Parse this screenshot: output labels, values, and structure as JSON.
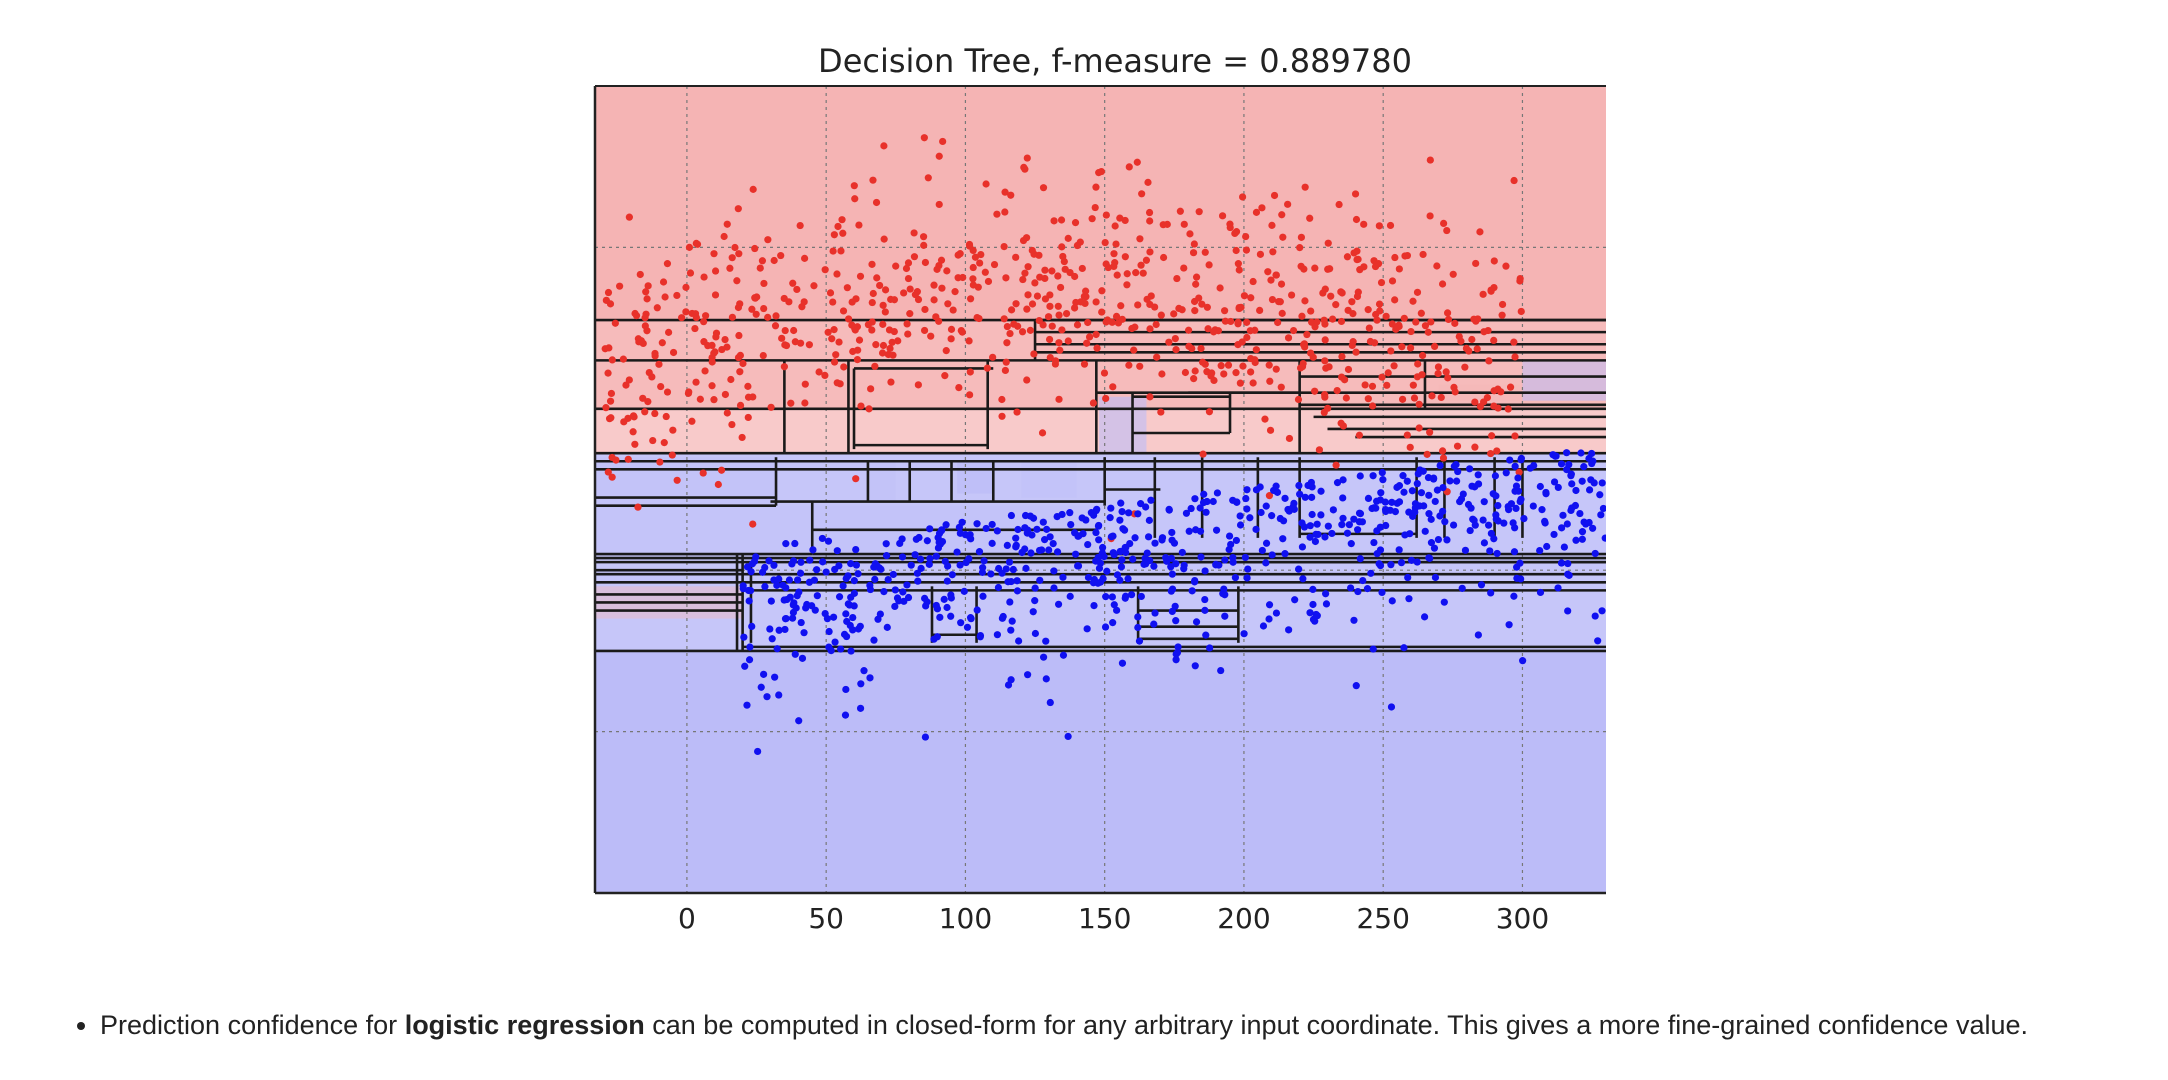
{
  "chart_data": {
    "type": "scatter",
    "title": "Decision Tree, f-measure = 0.889780",
    "xlabel": "",
    "ylabel": "",
    "xlim": [
      -33,
      330
    ],
    "ylim": [
      0,
      100
    ],
    "x_ticks": [
      0,
      50,
      100,
      150,
      200,
      250,
      300
    ],
    "x_tick_labels": [
      "0",
      "50",
      "100",
      "150",
      "200",
      "250",
      "300"
    ],
    "y_gridlines": [
      20,
      40,
      60,
      80
    ],
    "grid": true,
    "legend": "none",
    "classes": [
      {
        "name": "",
        "point_color": "#e8312a",
        "region_color": "#f5b4b4",
        "approx_points": 800
      },
      {
        "name": "",
        "point_color": "#1010f0",
        "region_color": "#bcbcf8",
        "approx_points": 750
      }
    ],
    "regions": [
      {
        "x0": -33,
        "x1": 330,
        "y0": 71,
        "y1": 100,
        "class": "red",
        "confidence": 1.0
      },
      {
        "x0": -33,
        "x1": 330,
        "y0": 60,
        "y1": 71,
        "class": "red",
        "confidence": 0.9
      },
      {
        "x0": -33,
        "x1": 330,
        "y0": 54.5,
        "y1": 60,
        "class": "red",
        "confidence": 0.7
      },
      {
        "x0": -33,
        "x1": 330,
        "y0": 30,
        "y1": 54.5,
        "class": "blue",
        "confidence": 0.85
      },
      {
        "x0": -33,
        "x1": 330,
        "y0": 0,
        "y1": 30,
        "class": "blue",
        "confidence": 1.0
      },
      {
        "x0": -33,
        "x1": 32,
        "y0": 48,
        "y1": 54,
        "class": "blue",
        "confidence": 0.25
      },
      {
        "x0": -33,
        "x1": 45,
        "y0": 42,
        "y1": 48,
        "class": "blue",
        "confidence": 0.15
      },
      {
        "x0": 45,
        "x1": 147,
        "y0": 42,
        "y1": 48,
        "class": "blue",
        "confidence": 0.3
      },
      {
        "x0": -33,
        "x1": 20,
        "y0": 34,
        "y1": 38,
        "class": "red",
        "confidence": 0.4
      },
      {
        "x0": 148,
        "x1": 165,
        "y0": 54.5,
        "y1": 61.5,
        "class": "blue",
        "confidence": 0.6
      },
      {
        "x0": 65,
        "x1": 75,
        "y0": 48.5,
        "y1": 53.5,
        "class": "blue",
        "confidence": 0.25
      },
      {
        "x0": 97,
        "x1": 110,
        "y0": 49.5,
        "y1": 53.5,
        "class": "blue",
        "confidence": 0.7
      },
      {
        "x0": 120,
        "x1": 140,
        "y0": 49,
        "y1": 53.5,
        "class": "blue",
        "confidence": 0.3
      },
      {
        "x0": 300,
        "x1": 330,
        "y0": 61,
        "y1": 66,
        "class": "blue",
        "confidence": 0.55
      },
      {
        "x0": 270,
        "x1": 300,
        "y0": 61,
        "y1": 63,
        "class": "red",
        "confidence": 0.25
      }
    ],
    "split_segments": [
      {
        "x0": -33,
        "x1": 330,
        "y0": 71,
        "y1": 71
      },
      {
        "x0": 125,
        "x1": 330,
        "y0": 71,
        "y1": 71
      },
      {
        "x0": 125,
        "x1": 125,
        "y0": 66,
        "y1": 71
      },
      {
        "x0": 125,
        "x1": 330,
        "y0": 69.5,
        "y1": 69.5
      },
      {
        "x0": 125,
        "x1": 330,
        "y0": 68,
        "y1": 68
      },
      {
        "x0": 125,
        "x1": 330,
        "y0": 67,
        "y1": 67
      },
      {
        "x0": -33,
        "x1": 330,
        "y0": 66,
        "y1": 66
      },
      {
        "x0": -33,
        "x1": 330,
        "y0": 60,
        "y1": 60
      },
      {
        "x0": 147,
        "x1": 330,
        "y0": 62,
        "y1": 62
      },
      {
        "x0": 35,
        "x1": 35,
        "y0": 54.5,
        "y1": 66
      },
      {
        "x0": 58,
        "x1": 58,
        "y0": 54.5,
        "y1": 66
      },
      {
        "x0": 60,
        "x1": 110,
        "y0": 65,
        "y1": 65
      },
      {
        "x0": 60,
        "x1": 60,
        "y0": 55,
        "y1": 65
      },
      {
        "x0": 108,
        "x1": 108,
        "y0": 55,
        "y1": 66
      },
      {
        "x0": 60,
        "x1": 108,
        "y0": 55.5,
        "y1": 55.5
      },
      {
        "x0": 147,
        "x1": 147,
        "y0": 54.5,
        "y1": 66
      },
      {
        "x0": 160,
        "x1": 160,
        "y0": 54.5,
        "y1": 62
      },
      {
        "x0": 160,
        "x1": 195,
        "y0": 61.5,
        "y1": 61.5
      },
      {
        "x0": 160,
        "x1": 195,
        "y0": 57,
        "y1": 57
      },
      {
        "x0": 195,
        "x1": 195,
        "y0": 57,
        "y1": 62
      },
      {
        "x0": 180,
        "x1": 220,
        "y0": 62,
        "y1": 62
      },
      {
        "x0": 220,
        "x1": 220,
        "y0": 54.5,
        "y1": 66
      },
      {
        "x0": 220,
        "x1": 330,
        "y0": 64,
        "y1": 64
      },
      {
        "x0": 265,
        "x1": 265,
        "y0": 60,
        "y1": 66
      },
      {
        "x0": 220,
        "x1": 330,
        "y0": 60.5,
        "y1": 60.5
      },
      {
        "x0": 225,
        "x1": 330,
        "y0": 59,
        "y1": 59
      },
      {
        "x0": 230,
        "x1": 330,
        "y0": 57.5,
        "y1": 57.5
      },
      {
        "x0": 240,
        "x1": 330,
        "y0": 56.5,
        "y1": 56.5
      },
      {
        "x0": -33,
        "x1": 330,
        "y0": 54.5,
        "y1": 54.5
      },
      {
        "x0": -33,
        "x1": 330,
        "y0": 53.5,
        "y1": 53.5
      },
      {
        "x0": -33,
        "x1": 330,
        "y0": 52.5,
        "y1": 52.5
      },
      {
        "x0": -33,
        "x1": 32,
        "y0": 49,
        "y1": 49
      },
      {
        "x0": -33,
        "x1": 32,
        "y0": 48,
        "y1": 48
      },
      {
        "x0": 32,
        "x1": 32,
        "y0": 48,
        "y1": 54
      },
      {
        "x0": 30,
        "x1": 150,
        "y0": 48.5,
        "y1": 48.5
      },
      {
        "x0": 45,
        "x1": 45,
        "y0": 42,
        "y1": 48.5
      },
      {
        "x0": 45,
        "x1": 147,
        "y0": 45,
        "y1": 45
      },
      {
        "x0": 65,
        "x1": 65,
        "y0": 48.5,
        "y1": 53.5
      },
      {
        "x0": 80,
        "x1": 80,
        "y0": 48.5,
        "y1": 53.5
      },
      {
        "x0": 95,
        "x1": 95,
        "y0": 48.5,
        "y1": 53.5
      },
      {
        "x0": 110,
        "x1": 110,
        "y0": 48.5,
        "y1": 53.5
      },
      {
        "x0": 150,
        "x1": 150,
        "y0": 48,
        "y1": 54
      },
      {
        "x0": 150,
        "x1": 170,
        "y0": 50,
        "y1": 50
      },
      {
        "x0": 168,
        "x1": 168,
        "y0": 44,
        "y1": 54
      },
      {
        "x0": 185,
        "x1": 185,
        "y0": 44,
        "y1": 54
      },
      {
        "x0": 205,
        "x1": 205,
        "y0": 44,
        "y1": 54
      },
      {
        "x0": 220,
        "x1": 220,
        "y0": 44,
        "y1": 54
      },
      {
        "x0": 262,
        "x1": 262,
        "y0": 44,
        "y1": 54
      },
      {
        "x0": 220,
        "x1": 262,
        "y0": 44.5,
        "y1": 44.5
      },
      {
        "x0": 272,
        "x1": 272,
        "y0": 44,
        "y1": 54
      },
      {
        "x0": 290,
        "x1": 290,
        "y0": 44,
        "y1": 54
      },
      {
        "x0": 300,
        "x1": 300,
        "y0": 44,
        "y1": 54
      },
      {
        "x0": -33,
        "x1": 45,
        "y0": 42,
        "y1": 42
      },
      {
        "x0": 45,
        "x1": 330,
        "y0": 42,
        "y1": 42
      },
      {
        "x0": 148,
        "x1": 330,
        "y0": 41,
        "y1": 41
      },
      {
        "x0": -33,
        "x1": 330,
        "y0": 41.5,
        "y1": 41.5
      },
      {
        "x0": -33,
        "x1": 330,
        "y0": 41,
        "y1": 41
      },
      {
        "x0": -33,
        "x1": 20,
        "y0": 40,
        "y1": 40
      },
      {
        "x0": -33,
        "x1": 330,
        "y0": 39.5,
        "y1": 39.5
      },
      {
        "x0": -33,
        "x1": 330,
        "y0": 38.5,
        "y1": 38.5
      },
      {
        "x0": -33,
        "x1": 20,
        "y0": 37,
        "y1": 37
      },
      {
        "x0": -33,
        "x1": 20,
        "y0": 36,
        "y1": 36
      },
      {
        "x0": -33,
        "x1": 20,
        "y0": 35,
        "y1": 35
      },
      {
        "x0": 18,
        "x1": 18,
        "y0": 30,
        "y1": 42
      },
      {
        "x0": 20,
        "x1": 20,
        "y0": 30,
        "y1": 42
      },
      {
        "x0": 23,
        "x1": 23,
        "y0": 31,
        "y1": 41
      },
      {
        "x0": 23,
        "x1": 330,
        "y0": 37.5,
        "y1": 37.5
      },
      {
        "x0": 88,
        "x1": 88,
        "y0": 31,
        "y1": 38
      },
      {
        "x0": 104,
        "x1": 104,
        "y0": 31,
        "y1": 38
      },
      {
        "x0": 88,
        "x1": 104,
        "y0": 32,
        "y1": 32
      },
      {
        "x0": 162,
        "x1": 162,
        "y0": 31,
        "y1": 38
      },
      {
        "x0": 162,
        "x1": 198,
        "y0": 35,
        "y1": 35
      },
      {
        "x0": 162,
        "x1": 198,
        "y0": 33,
        "y1": 33
      },
      {
        "x0": 198,
        "x1": 198,
        "y0": 31,
        "y1": 38
      },
      {
        "x0": 162,
        "x1": 198,
        "y0": 31.5,
        "y1": 31.5
      },
      {
        "x0": 20,
        "x1": 330,
        "y0": 30.5,
        "y1": 30.5
      },
      {
        "x0": -33,
        "x1": 330,
        "y0": 30,
        "y1": 30
      }
    ]
  },
  "caption": {
    "prefix": "Prediction confidence for ",
    "bold": "logistic regression",
    "suffix": " can be computed in closed-form for any arbitrary input coordinate. This gives a more fine-grained confidence value."
  }
}
